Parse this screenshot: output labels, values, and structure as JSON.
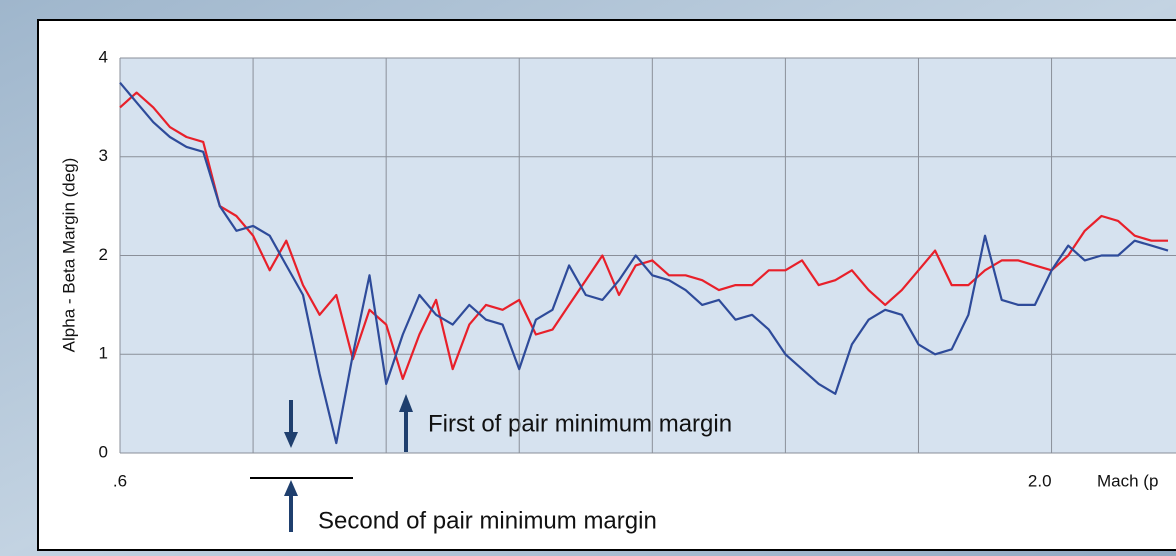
{
  "chart_data": {
    "type": "line",
    "ylabel": "Alpha - Beta  Margin  (deg)",
    "xlabel": "Mach (p",
    "x": [
      0.6,
      0.625,
      0.65,
      0.675,
      0.7,
      0.725,
      0.75,
      0.775,
      0.8,
      0.825,
      0.85,
      0.875,
      0.9,
      0.925,
      0.95,
      0.975,
      1.0,
      1.025,
      1.05,
      1.075,
      1.1,
      1.125,
      1.15,
      1.175,
      1.2,
      1.225,
      1.25,
      1.275,
      1.3,
      1.325,
      1.35,
      1.375,
      1.4,
      1.425,
      1.45,
      1.475,
      1.5,
      1.525,
      1.55,
      1.575,
      1.6,
      1.625,
      1.65,
      1.675,
      1.7,
      1.725,
      1.75,
      1.775,
      1.8,
      1.825,
      1.85,
      1.875,
      1.9,
      1.925,
      1.95,
      1.975,
      2.0,
      2.025,
      2.05,
      2.075,
      2.1,
      2.125,
      2.15,
      2.175
    ],
    "series": [
      {
        "color": "#e8202a",
        "values": [
          3.5,
          3.65,
          3.5,
          3.3,
          3.2,
          3.15,
          2.5,
          2.4,
          2.2,
          1.85,
          2.15,
          1.7,
          1.4,
          1.6,
          0.95,
          1.45,
          1.3,
          0.75,
          1.2,
          1.55,
          0.85,
          1.3,
          1.5,
          1.45,
          1.55,
          1.2,
          1.25,
          1.5,
          1.75,
          2.0,
          1.6,
          1.9,
          1.95,
          1.8,
          1.8,
          1.75,
          1.65,
          1.7,
          1.7,
          1.85,
          1.85,
          1.95,
          1.7,
          1.75,
          1.85,
          1.65,
          1.5,
          1.65,
          1.85,
          2.05,
          1.7,
          1.7,
          1.85,
          1.95,
          1.95,
          1.9,
          1.85,
          2.0,
          2.25,
          2.4,
          2.35,
          2.2,
          2.15,
          2.15
        ]
      },
      {
        "color": "#2e4b9a",
        "values": [
          3.75,
          3.55,
          3.35,
          3.2,
          3.1,
          3.05,
          2.5,
          2.25,
          2.3,
          2.2,
          1.9,
          1.6,
          0.8,
          0.1,
          1.0,
          1.8,
          0.7,
          1.2,
          1.6,
          1.4,
          1.3,
          1.5,
          1.35,
          1.3,
          0.85,
          1.35,
          1.45,
          1.9,
          1.6,
          1.55,
          1.75,
          2.0,
          1.8,
          1.75,
          1.65,
          1.5,
          1.55,
          1.35,
          1.4,
          1.25,
          1.0,
          0.85,
          0.7,
          0.6,
          1.1,
          1.35,
          1.45,
          1.4,
          1.1,
          1.0,
          1.05,
          1.4,
          2.2,
          1.55,
          1.5,
          1.5,
          1.85,
          2.1,
          1.95,
          2.0,
          2.0,
          2.15,
          2.1,
          2.05
        ]
      }
    ],
    "xlim": [
      0.6,
      2.175
    ],
    "ylim": [
      0,
      4
    ],
    "yticks": [
      0,
      1,
      2,
      3,
      4
    ],
    "xticks": [
      {
        "value": 0.6,
        "label": ".6"
      },
      {
        "value": 0.8,
        "label": null
      },
      {
        "value": 1.0,
        "label": null
      },
      {
        "value": 1.2,
        "label": null
      },
      {
        "value": 1.4,
        "label": null
      },
      {
        "value": 1.6,
        "label": null
      },
      {
        "value": 1.8,
        "label": null
      },
      {
        "value": 2.0,
        "label": "2.0"
      }
    ],
    "grid": true,
    "annotations": [
      "First of pair minimum margin",
      "Second of pair minimum margin"
    ]
  }
}
